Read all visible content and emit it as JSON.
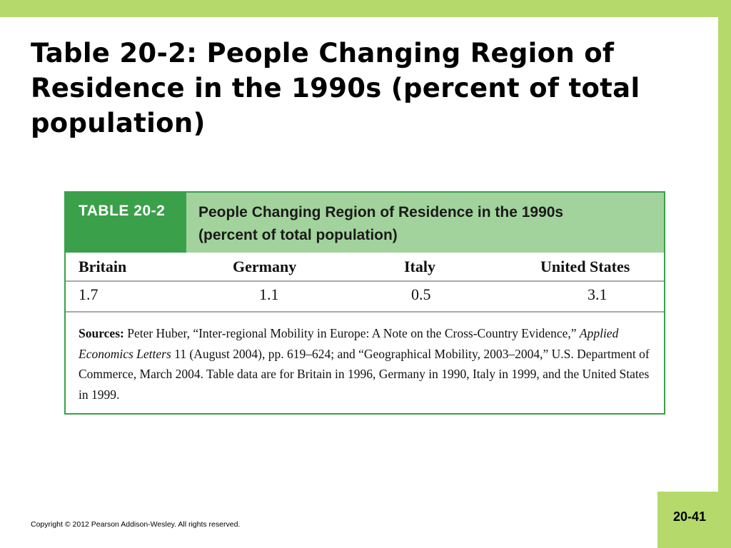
{
  "slide": {
    "title": "Table 20-2: People Changing Region of Residence in the 1990s (percent of total population)",
    "copyright": "Copyright © 2012 Pearson Addison-Wesley. All rights reserved.",
    "page_number": "20-41"
  },
  "table": {
    "label": "TABLE 20-2",
    "caption_line1": "People Changing Region of Residence in the 1990s",
    "caption_line2": "(percent of total population)",
    "columns": [
      "Britain",
      "Germany",
      "Italy",
      "United States"
    ],
    "values": [
      "1.7",
      "1.1",
      "0.5",
      "3.1"
    ],
    "sources": {
      "label": "Sources:",
      "text_1": "Peter Huber, “Inter-regional Mobility in Europe: A Note on the Cross-Country Evidence,”",
      "journal": "Applied Economics Letters",
      "text_2": "11 (August 2004), pp. 619–624; and “Geographical Mobility, 2003–2004,” U.S. Department of Commerce, March 2004. Table data are for Britain in 1996, Germany in 1990, Italy in 1999, and the United States in 1999."
    }
  },
  "colors": {
    "frame": "#b5d96b",
    "table_label_bg": "#3aa04a",
    "table_header_bg": "#a3d39c"
  }
}
